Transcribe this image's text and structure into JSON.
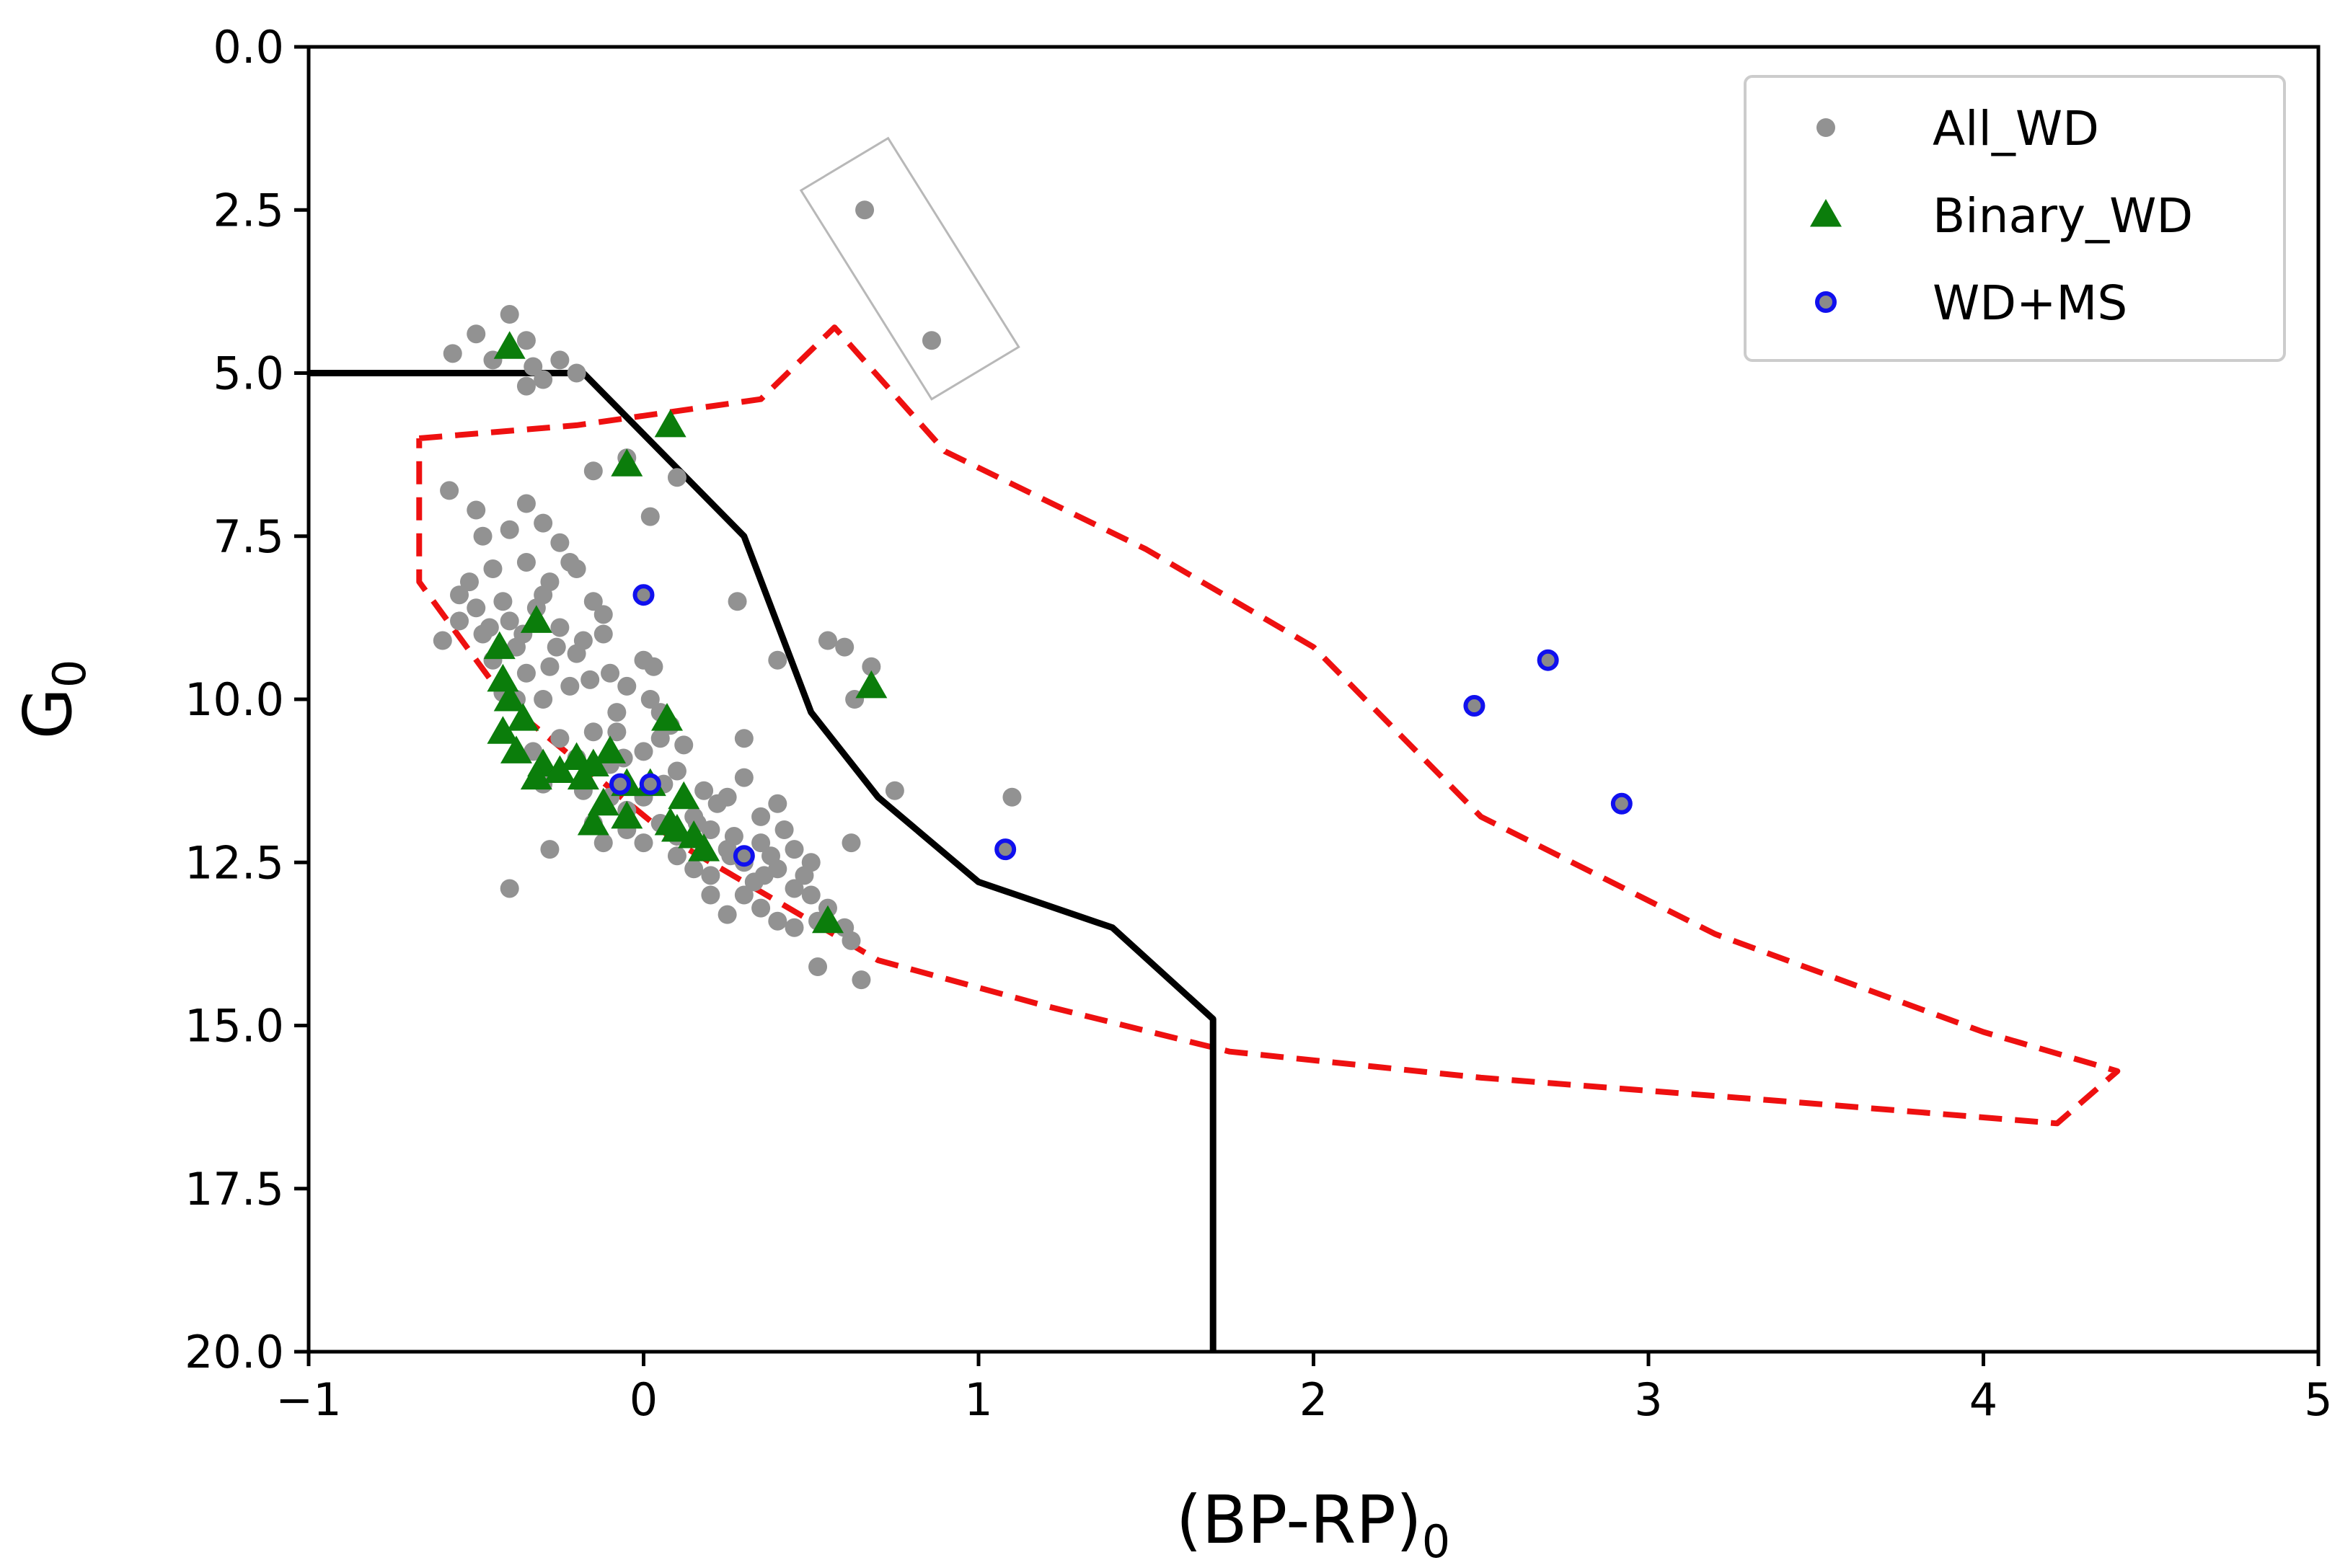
{
  "chart_data": {
    "type": "scatter",
    "title": "",
    "xlabel": "(BP-RP)",
    "xlabel_sub": "0",
    "ylabel": "G",
    "ylabel_sub": "0",
    "xlim": [
      -1,
      5
    ],
    "ylim": [
      20,
      0
    ],
    "y_inverted": true,
    "grid": false,
    "x_ticks": [
      -1,
      0,
      1,
      2,
      3,
      4,
      5
    ],
    "x_tick_labels": [
      "−1",
      "0",
      "1",
      "2",
      "3",
      "4",
      "5"
    ],
    "y_ticks": [
      0,
      2.5,
      5,
      7.5,
      10,
      12.5,
      15,
      17.5,
      20
    ],
    "y_tick_labels": [
      "0.0",
      "2.5",
      "5.0",
      "7.5",
      "10.0",
      "12.5",
      "15.0",
      "17.5",
      "20.0"
    ],
    "legend": {
      "position": "top-right",
      "entries": [
        {
          "label": "All_WD",
          "marker": "dot",
          "color": "#929292"
        },
        {
          "label": "Binary_WD",
          "marker": "triangle",
          "color": "#0b7d0b"
        },
        {
          "label": "WD+MS",
          "marker": "open-circle",
          "color": "#1010ee"
        }
      ]
    },
    "series": [
      {
        "name": "All_WD",
        "color": "#929292",
        "points": [
          [
            0.66,
            2.5
          ],
          [
            0.86,
            4.5
          ],
          [
            -0.4,
            4.1
          ],
          [
            -0.5,
            4.4
          ],
          [
            -0.57,
            4.7
          ],
          [
            -0.35,
            4.5
          ],
          [
            -0.45,
            4.8
          ],
          [
            -0.33,
            4.9
          ],
          [
            -0.3,
            5.1
          ],
          [
            -0.25,
            4.8
          ],
          [
            -0.2,
            5.0
          ],
          [
            -0.35,
            5.2
          ],
          [
            -0.15,
            6.5
          ],
          [
            -0.05,
            6.3
          ],
          [
            0.1,
            6.6
          ],
          [
            0.02,
            7.2
          ],
          [
            -0.58,
            6.8
          ],
          [
            -0.5,
            7.1
          ],
          [
            -0.48,
            7.5
          ],
          [
            -0.4,
            7.4
          ],
          [
            -0.35,
            7.0
          ],
          [
            -0.3,
            7.3
          ],
          [
            -0.25,
            7.6
          ],
          [
            -0.35,
            7.9
          ],
          [
            -0.45,
            8.0
          ],
          [
            -0.52,
            8.2
          ],
          [
            -0.42,
            8.5
          ],
          [
            -0.5,
            8.6
          ],
          [
            -0.55,
            8.8
          ],
          [
            -0.6,
            9.1
          ],
          [
            -0.48,
            9.0
          ],
          [
            -0.4,
            8.8
          ],
          [
            -0.3,
            8.4
          ],
          [
            -0.25,
            8.9
          ],
          [
            -0.2,
            8.0
          ],
          [
            -0.15,
            8.5
          ],
          [
            -0.12,
            8.7
          ],
          [
            -0.2,
            9.3
          ],
          [
            -0.28,
            9.5
          ],
          [
            -0.35,
            9.6
          ],
          [
            -0.45,
            9.4
          ],
          [
            -0.38,
            10.0
          ],
          [
            -0.3,
            10.0
          ],
          [
            -0.22,
            9.8
          ],
          [
            -0.1,
            9.6
          ],
          [
            0.0,
            9.4
          ],
          [
            0.03,
            9.5
          ],
          [
            -0.08,
            10.2
          ],
          [
            -0.15,
            10.5
          ],
          [
            -0.25,
            10.6
          ],
          [
            -0.33,
            10.8
          ],
          [
            -0.2,
            10.9
          ],
          [
            -0.1,
            11.0
          ],
          [
            0.0,
            10.8
          ],
          [
            0.05,
            10.6
          ],
          [
            0.1,
            11.1
          ],
          [
            0.0,
            11.5
          ],
          [
            -0.05,
            11.7
          ],
          [
            0.05,
            11.9
          ],
          [
            0.1,
            12.1
          ],
          [
            0.15,
            11.8
          ],
          [
            0.2,
            12.0
          ],
          [
            0.25,
            12.3
          ],
          [
            0.3,
            12.5
          ],
          [
            0.35,
            12.2
          ],
          [
            0.4,
            12.6
          ],
          [
            0.45,
            12.9
          ],
          [
            0.5,
            13.0
          ],
          [
            0.55,
            13.2
          ],
          [
            0.6,
            13.5
          ],
          [
            0.62,
            13.7
          ],
          [
            0.2,
            12.7
          ],
          [
            0.15,
            12.6
          ],
          [
            0.3,
            13.0
          ],
          [
            0.35,
            13.2
          ],
          [
            0.4,
            13.4
          ],
          [
            0.45,
            13.5
          ],
          [
            0.25,
            13.3
          ],
          [
            0.2,
            13.0
          ],
          [
            0.1,
            12.4
          ],
          [
            0.0,
            12.2
          ],
          [
            0.25,
            11.5
          ],
          [
            0.3,
            11.2
          ],
          [
            0.35,
            11.8
          ],
          [
            0.4,
            11.6
          ],
          [
            0.42,
            12.0
          ],
          [
            0.45,
            12.3
          ],
          [
            0.5,
            12.5
          ],
          [
            0.3,
            10.6
          ],
          [
            0.28,
            8.5
          ],
          [
            0.4,
            9.4
          ],
          [
            0.55,
            9.1
          ],
          [
            0.6,
            9.2
          ],
          [
            0.68,
            9.5
          ],
          [
            0.63,
            10.0
          ],
          [
            0.62,
            12.2
          ],
          [
            0.75,
            11.4
          ],
          [
            1.1,
            11.5
          ],
          [
            0.52,
            14.1
          ],
          [
            0.65,
            14.3
          ],
          [
            -0.4,
            12.9
          ],
          [
            -0.28,
            12.3
          ],
          [
            -0.1,
            11.5
          ],
          [
            -0.15,
            11.9
          ],
          [
            -0.12,
            12.2
          ],
          [
            -0.05,
            12.0
          ],
          [
            -0.3,
            11.3
          ],
          [
            -0.18,
            11.4
          ],
          [
            -0.08,
            10.5
          ],
          [
            0.05,
            10.2
          ],
          [
            0.12,
            10.7
          ],
          [
            0.18,
            11.4
          ],
          [
            0.22,
            11.6
          ],
          [
            0.27,
            12.1
          ],
          [
            0.33,
            12.8
          ],
          [
            0.38,
            12.4
          ],
          [
            0.48,
            12.7
          ],
          [
            0.52,
            13.4
          ],
          [
            -0.42,
            9.9
          ],
          [
            -0.38,
            9.2
          ],
          [
            -0.32,
            8.6
          ],
          [
            -0.28,
            8.2
          ],
          [
            -0.22,
            7.9
          ],
          [
            -0.18,
            9.1
          ],
          [
            -0.12,
            9.0
          ],
          [
            -0.05,
            9.8
          ],
          [
            0.02,
            10.0
          ],
          [
            0.08,
            10.4
          ],
          [
            -0.55,
            8.4
          ],
          [
            -0.46,
            8.9
          ],
          [
            -0.36,
            9.0
          ],
          [
            -0.26,
            9.2
          ],
          [
            -0.16,
            9.7
          ],
          [
            -0.06,
            10.9
          ],
          [
            0.06,
            11.3
          ],
          [
            0.16,
            11.9
          ],
          [
            0.26,
            12.4
          ],
          [
            0.36,
            12.7
          ]
        ]
      },
      {
        "name": "Binary_WD",
        "color": "#0b7d0b",
        "points": [
          [
            -0.4,
            4.6
          ],
          [
            0.08,
            5.8
          ],
          [
            -0.05,
            6.4
          ],
          [
            -0.32,
            8.8
          ],
          [
            -0.43,
            9.2
          ],
          [
            -0.42,
            9.7
          ],
          [
            -0.4,
            10.0
          ],
          [
            -0.36,
            10.3
          ],
          [
            -0.42,
            10.5
          ],
          [
            -0.38,
            10.8
          ],
          [
            -0.3,
            11.0
          ],
          [
            -0.32,
            11.2
          ],
          [
            -0.25,
            11.1
          ],
          [
            -0.2,
            10.9
          ],
          [
            -0.15,
            11.0
          ],
          [
            -0.1,
            10.8
          ],
          [
            -0.18,
            11.2
          ],
          [
            -0.05,
            11.3
          ],
          [
            0.02,
            11.3
          ],
          [
            0.12,
            11.5
          ],
          [
            -0.12,
            11.6
          ],
          [
            -0.05,
            11.8
          ],
          [
            -0.15,
            11.9
          ],
          [
            0.08,
            11.9
          ],
          [
            0.1,
            12.0
          ],
          [
            0.15,
            12.1
          ],
          [
            0.18,
            12.3
          ],
          [
            0.07,
            10.3
          ],
          [
            0.68,
            9.8
          ],
          [
            0.55,
            13.4
          ]
        ]
      },
      {
        "name": "WD+MS",
        "color": "#1010ee",
        "points": [
          [
            0.0,
            8.4
          ],
          [
            -0.07,
            11.3
          ],
          [
            0.02,
            11.3
          ],
          [
            0.3,
            12.4
          ],
          [
            1.08,
            12.3
          ],
          [
            2.48,
            10.1
          ],
          [
            2.7,
            9.4
          ],
          [
            2.92,
            11.6
          ]
        ]
      }
    ],
    "boundary_line": {
      "color": "#000000",
      "style": "solid",
      "points": [
        [
          -1.0,
          5.0
        ],
        [
          -0.18,
          5.0
        ],
        [
          0.3,
          7.5
        ],
        [
          0.5,
          10.2
        ],
        [
          0.7,
          11.5
        ],
        [
          1.0,
          12.8
        ],
        [
          1.4,
          13.5
        ],
        [
          1.7,
          14.9
        ],
        [
          1.7,
          20.0
        ]
      ]
    },
    "region_outline": {
      "color": "#ee1010",
      "style": "dashed",
      "points": [
        [
          -0.67,
          6.0
        ],
        [
          -0.2,
          5.8
        ],
        [
          0.35,
          5.4
        ],
        [
          0.57,
          4.3
        ],
        [
          0.9,
          6.2
        ],
        [
          1.5,
          7.7
        ],
        [
          2.0,
          9.2
        ],
        [
          2.5,
          11.8
        ],
        [
          3.2,
          13.6
        ],
        [
          4.0,
          15.1
        ],
        [
          4.4,
          15.7
        ],
        [
          4.22,
          16.5
        ],
        [
          3.5,
          16.2
        ],
        [
          2.5,
          15.8
        ],
        [
          1.75,
          15.4
        ],
        [
          1.2,
          14.7
        ],
        [
          0.7,
          14.0
        ],
        [
          0.1,
          12.2
        ],
        [
          -0.4,
          10.1
        ],
        [
          -0.67,
          8.2
        ],
        [
          -0.67,
          6.0
        ]
      ]
    },
    "highlight_box": {
      "color": "#b8b8b8",
      "corners": [
        [
          0.47,
          2.2
        ],
        [
          0.73,
          1.4
        ],
        [
          1.12,
          4.6
        ],
        [
          0.86,
          5.4
        ]
      ]
    }
  }
}
